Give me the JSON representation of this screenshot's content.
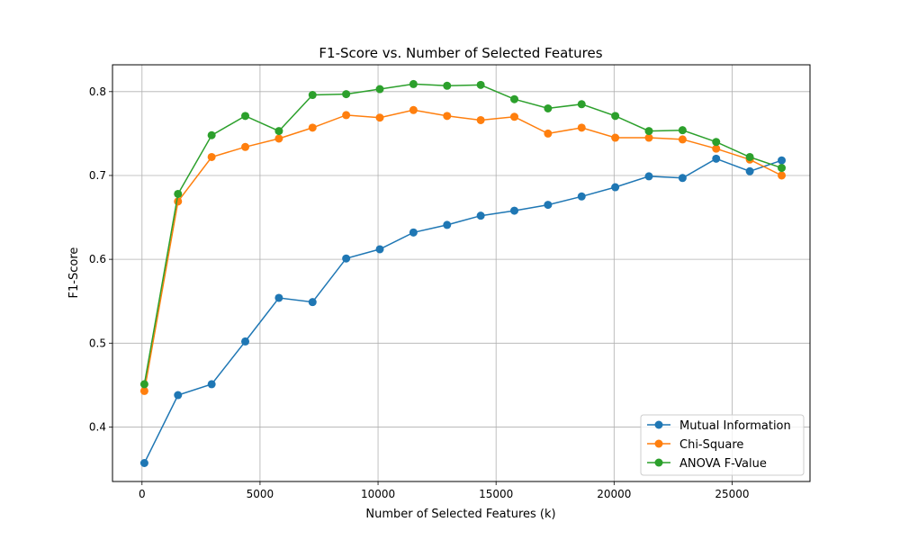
{
  "chart_data": {
    "type": "line",
    "title": "F1-Score vs. Number of Selected Features",
    "xlabel": "Number of Selected Features (k)",
    "ylabel": "F1-Score",
    "xlim": [
      -1250,
      28300
    ],
    "ylim": [
      0.335,
      0.832
    ],
    "xticks": [
      0,
      5000,
      10000,
      15000,
      20000,
      25000
    ],
    "yticks": [
      0.4,
      0.5,
      0.6,
      0.7,
      0.8
    ],
    "grid": true,
    "legend_position": "lower-right",
    "x": [
      100,
      1525,
      2950,
      4375,
      5800,
      7225,
      8650,
      10075,
      11500,
      12925,
      14350,
      15775,
      17200,
      18625,
      20050,
      21475,
      22900,
      24325,
      25750,
      27100
    ],
    "series": [
      {
        "name": "Mutual Information",
        "color": "#1f77b4",
        "values": [
          0.357,
          0.438,
          0.451,
          0.502,
          0.554,
          0.549,
          0.601,
          0.612,
          0.632,
          0.641,
          0.652,
          0.658,
          0.665,
          0.675,
          0.686,
          0.699,
          0.697,
          0.72,
          0.705,
          0.718
        ]
      },
      {
        "name": "Chi-Square",
        "color": "#ff7f0e",
        "values": [
          0.443,
          0.669,
          0.722,
          0.734,
          0.744,
          0.757,
          0.772,
          0.769,
          0.778,
          0.771,
          0.766,
          0.77,
          0.75,
          0.757,
          0.745,
          0.745,
          0.743,
          0.732,
          0.719,
          0.7
        ]
      },
      {
        "name": "ANOVA F-Value",
        "color": "#2ca02c",
        "values": [
          0.451,
          0.678,
          0.748,
          0.771,
          0.753,
          0.796,
          0.797,
          0.803,
          0.809,
          0.807,
          0.808,
          0.791,
          0.78,
          0.785,
          0.771,
          0.753,
          0.754,
          0.74,
          0.722,
          0.709
        ]
      }
    ]
  }
}
